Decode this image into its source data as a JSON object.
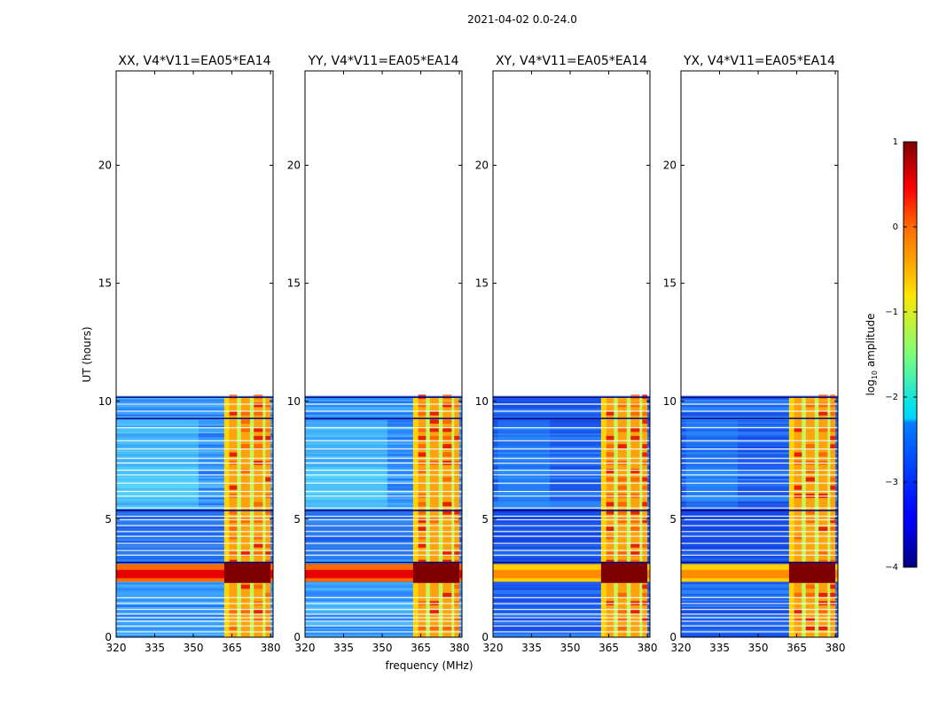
{
  "figure": {
    "suptitle": "2021-04-02 0.0-24.0",
    "ylabel": "UT (hours)",
    "xlabel": "frequency (MHz)"
  },
  "chart_data": {
    "type": "heatmap",
    "title": "2021-04-02 0.0-24.0",
    "xlabel": "frequency (MHz)",
    "ylabel": "UT (hours)",
    "xlim": [
      320,
      381
    ],
    "ylim": [
      0,
      24
    ],
    "x_ticks": [
      320,
      335,
      350,
      365,
      380
    ],
    "y_ticks": [
      0,
      5,
      10,
      15,
      20
    ],
    "data_extent_hours": [
      0,
      10.2
    ],
    "panels": [
      {
        "title": "XX, V4*V11=EA05*EA14",
        "pol": "XX"
      },
      {
        "title": "YY, V4*V11=EA05*EA14",
        "pol": "YY"
      },
      {
        "title": "XY, V4*V11=EA05*EA14",
        "pol": "XY"
      },
      {
        "title": "YX, V4*V11=EA05*EA14",
        "pol": "YX"
      }
    ],
    "colorbar": {
      "label": "log10 amplitude",
      "label_base": "log",
      "label_sub": "10",
      "label_rest": " amplitude",
      "range": [
        -4,
        1
      ],
      "ticks": [
        1,
        0,
        -1,
        -2,
        -3,
        -4
      ],
      "tick_labels": [
        "1",
        "0",
        "−1",
        "−2",
        "−3",
        "−4"
      ],
      "colormap": "jet"
    }
  }
}
